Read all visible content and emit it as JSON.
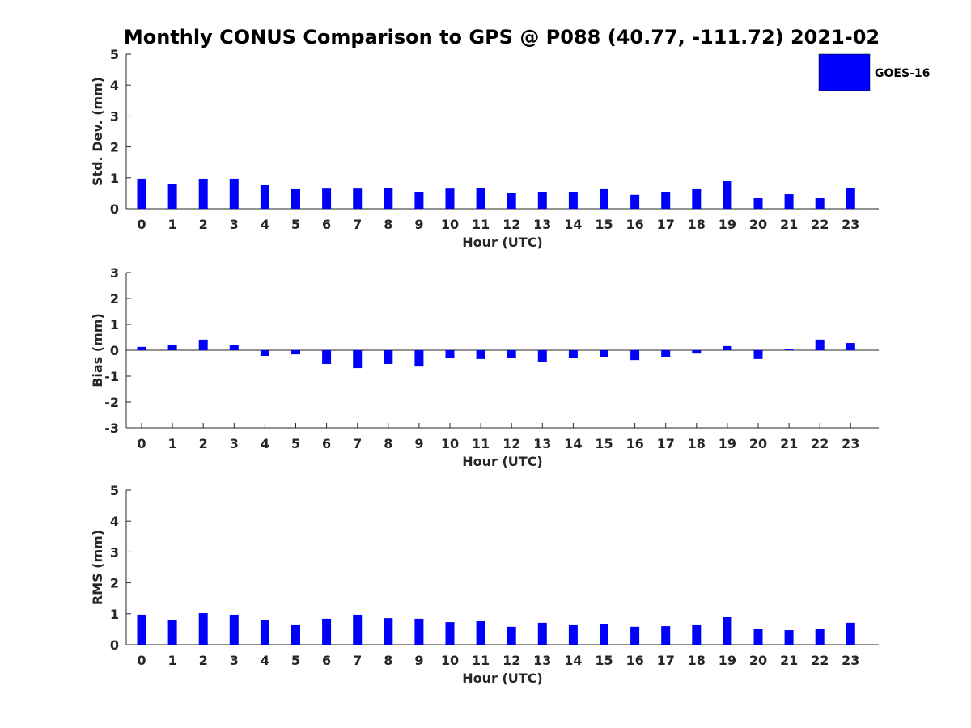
{
  "title": "Monthly CONUS Comparison to GPS @ P088 (40.77, -111.72) 2021-02",
  "legend": {
    "label": "GOES-16",
    "color": "#0000ff"
  },
  "chart_data": [
    {
      "type": "bar",
      "xlabel": "Hour (UTC)",
      "ylabel": "Std. Dev. (mm)",
      "ylim": [
        0,
        5
      ],
      "yticks": [
        "0",
        "1",
        "2",
        "3",
        "4",
        "5"
      ],
      "categories": [
        "0",
        "1",
        "2",
        "3",
        "4",
        "5",
        "6",
        "7",
        "8",
        "9",
        "10",
        "11",
        "12",
        "13",
        "14",
        "15",
        "16",
        "17",
        "18",
        "19",
        "20",
        "21",
        "22",
        "23"
      ],
      "series": [
        {
          "name": "GOES-16",
          "color": "#0000ff",
          "values": [
            0.97,
            0.79,
            0.97,
            0.97,
            0.76,
            0.63,
            0.65,
            0.65,
            0.68,
            0.55,
            0.65,
            0.68,
            0.5,
            0.55,
            0.55,
            0.63,
            0.45,
            0.55,
            0.63,
            0.89,
            0.34,
            0.47,
            0.34,
            0.66
          ]
        }
      ]
    },
    {
      "type": "bar",
      "xlabel": "Hour (UTC)",
      "ylabel": "Bias (mm)",
      "ylim": [
        -3,
        3
      ],
      "yticks": [
        "-3",
        "-2",
        "-1",
        "0",
        "1",
        "2",
        "3"
      ],
      "categories": [
        "0",
        "1",
        "2",
        "3",
        "4",
        "5",
        "6",
        "7",
        "8",
        "9",
        "10",
        "11",
        "12",
        "13",
        "14",
        "15",
        "16",
        "17",
        "18",
        "19",
        "20",
        "21",
        "22",
        "23"
      ],
      "series": [
        {
          "name": "GOES-16",
          "color": "#0000ff",
          "values": [
            0.13,
            0.22,
            0.41,
            0.19,
            -0.22,
            -0.16,
            -0.53,
            -0.69,
            -0.53,
            -0.63,
            -0.31,
            -0.34,
            -0.31,
            -0.44,
            -0.31,
            -0.25,
            -0.38,
            -0.25,
            -0.13,
            0.16,
            -0.34,
            0.06,
            0.41,
            0.28
          ]
        }
      ]
    },
    {
      "type": "bar",
      "xlabel": "Hour (UTC)",
      "ylabel": "RMS (mm)",
      "ylim": [
        0,
        5
      ],
      "yticks": [
        "0",
        "1",
        "2",
        "3",
        "4",
        "5"
      ],
      "categories": [
        "0",
        "1",
        "2",
        "3",
        "4",
        "5",
        "6",
        "7",
        "8",
        "9",
        "10",
        "11",
        "12",
        "13",
        "14",
        "15",
        "16",
        "17",
        "18",
        "19",
        "20",
        "21",
        "22",
        "23"
      ],
      "series": [
        {
          "name": "GOES-16",
          "color": "#0000ff",
          "values": [
            0.97,
            0.81,
            1.02,
            0.97,
            0.79,
            0.63,
            0.84,
            0.97,
            0.86,
            0.84,
            0.73,
            0.76,
            0.58,
            0.71,
            0.63,
            0.68,
            0.58,
            0.6,
            0.63,
            0.89,
            0.5,
            0.47,
            0.52,
            0.71
          ]
        }
      ]
    }
  ]
}
